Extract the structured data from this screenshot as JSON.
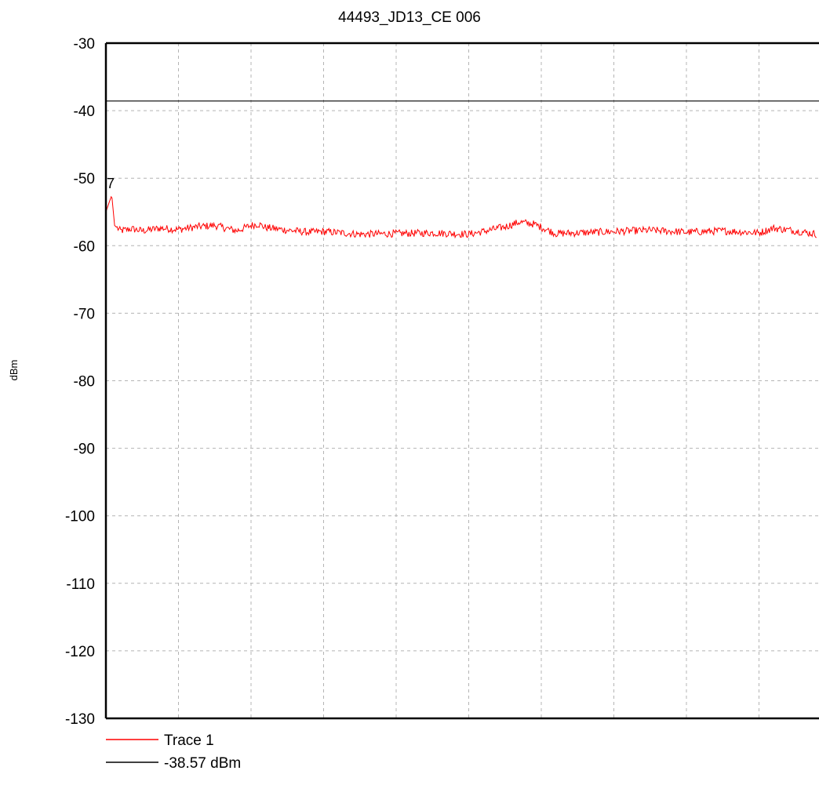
{
  "chart_data": {
    "type": "line",
    "title": "44493_JD13_CE 006",
    "xlabel": "",
    "ylabel": "dBm",
    "ylim": [
      -130,
      -30
    ],
    "yticks": [
      -30,
      -40,
      -50,
      -60,
      -70,
      -80,
      -90,
      -100,
      -110,
      -120,
      -130
    ],
    "x_grid_divisions": 10,
    "x_visible_divisions": 9.8,
    "grid": true,
    "legend_placement": "bottom-left",
    "marker_label": "7",
    "colors": {
      "trace": "#ff0000",
      "limit": "#000000",
      "grid": "#b4b4b4",
      "axes": "#000000"
    },
    "series": [
      {
        "name": "Trace 1",
        "color": "#ff0000",
        "x": [
          0,
          0.08,
          0.12,
          0.2,
          0.35,
          0.5,
          0.75,
          1.0,
          1.25,
          1.5,
          1.65,
          1.8,
          2.0,
          2.1,
          2.2,
          2.5,
          2.8,
          3.0,
          3.5,
          4.0,
          4.5,
          5.0,
          5.2,
          5.5,
          5.7,
          5.9,
          6.2,
          6.5,
          7.0,
          7.5,
          8.0,
          8.5,
          9.0,
          9.2,
          9.5,
          9.8
        ],
        "y": [
          -55,
          -52.5,
          -57,
          -57.8,
          -57.5,
          -57.8,
          -57.4,
          -57.6,
          -57.2,
          -57.0,
          -57.4,
          -57.8,
          -57.0,
          -56.8,
          -57.3,
          -57.7,
          -58.0,
          -57.9,
          -58.3,
          -58.2,
          -58.1,
          -58.3,
          -57.9,
          -57.2,
          -56.5,
          -56.8,
          -58.2,
          -58.1,
          -57.9,
          -57.7,
          -58.0,
          -57.8,
          -58.1,
          -57.4,
          -57.8,
          -58.3
        ]
      },
      {
        "name": "-38.57 dBm",
        "color": "#000000",
        "constant": -38.57
      }
    ]
  }
}
